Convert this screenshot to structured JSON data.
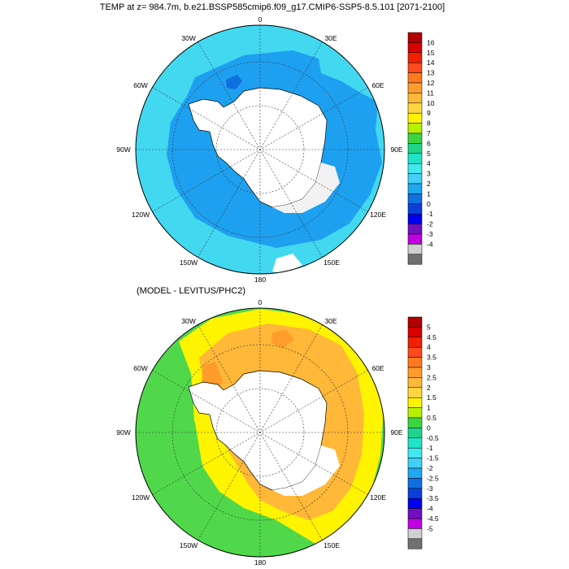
{
  "panel1": {
    "title": "TEMP at z= 984.7m, b.e21.BSSP585cmip6.f09_g17.CMIP6-SSP5-8.5.101 [2071-2100]",
    "lon_labels": [
      "0",
      "30E",
      "60E",
      "90E",
      "120E",
      "150E",
      "180",
      "150W",
      "120W",
      "90W",
      "60W",
      "30W"
    ],
    "colorbar": {
      "labels": [
        "16",
        "15",
        "14",
        "13",
        "12",
        "11",
        "10",
        "9",
        "8",
        "7",
        "6",
        "5",
        "4",
        "3",
        "2",
        "1",
        "0",
        "-1",
        "-2",
        "-3",
        "-4"
      ],
      "colors": [
        "#b00000",
        "#d80000",
        "#f02000",
        "#ff4a1c",
        "#ff7a1e",
        "#ff9c2a",
        "#ffb838",
        "#ffd640",
        "#fff400",
        "#b8f000",
        "#3cd43c",
        "#1ed48a",
        "#20e4c8",
        "#40e8f0",
        "#40d0f8",
        "#1ea8f0",
        "#1070e0",
        "#0a40d8",
        "#0000f0",
        "#7010c0",
        "#c000e0",
        "#d0d0d0",
        "#707070"
      ]
    }
  },
  "panel2": {
    "title": "(MODEL - LEVITUS/PHC2)",
    "lon_labels": [
      "0",
      "30E",
      "60E",
      "90E",
      "120E",
      "150E",
      "180",
      "150W",
      "120W",
      "90W",
      "60W",
      "30W"
    ],
    "colorbar": {
      "labels": [
        "5",
        "4.5",
        "4",
        "3.5",
        "3",
        "2.5",
        "2",
        "1.5",
        "1",
        "0.5",
        "0",
        "-0.5",
        "-1",
        "-1.5",
        "-2",
        "-2.5",
        "-3",
        "-3.5",
        "-4",
        "-4.5",
        "-5"
      ],
      "colors": [
        "#b00000",
        "#d80000",
        "#f02000",
        "#ff4a1c",
        "#ff7a1e",
        "#ff9c2a",
        "#ffb838",
        "#ffd640",
        "#fff400",
        "#b8f000",
        "#3cd43c",
        "#1ed48a",
        "#20e4c8",
        "#40e8f0",
        "#40d0f8",
        "#1ea8f0",
        "#1070e0",
        "#0a40d8",
        "#0000f0",
        "#7010c0",
        "#c000e0",
        "#d0d0d0",
        "#707070"
      ]
    }
  }
}
